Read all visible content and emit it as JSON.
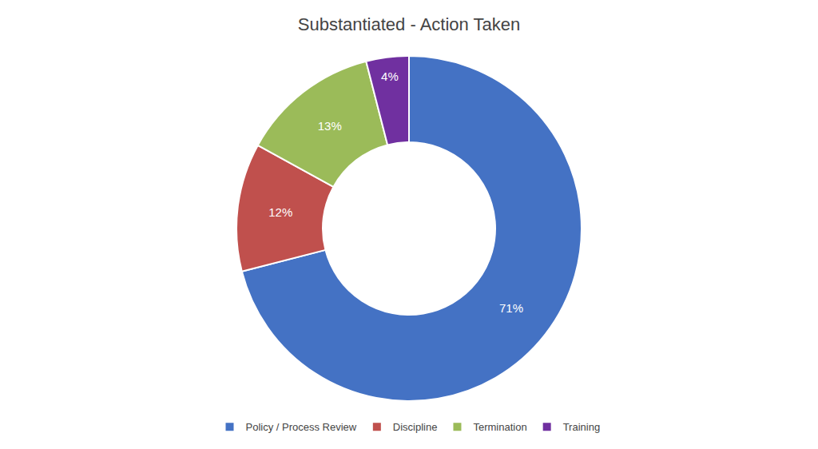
{
  "chart_data": {
    "type": "donut",
    "title": "Substantiated - Action Taken",
    "categories": [
      "Policy / Process Review",
      "Discipline",
      "Termination",
      "Training"
    ],
    "values": [
      71,
      12,
      13,
      4
    ],
    "value_labels": [
      "71%",
      "12%",
      "13%",
      "4%"
    ],
    "colors": [
      "#4472C4",
      "#C0504D",
      "#9BBB59",
      "#7030A0"
    ],
    "data_labels": true,
    "legend": "bottom"
  }
}
